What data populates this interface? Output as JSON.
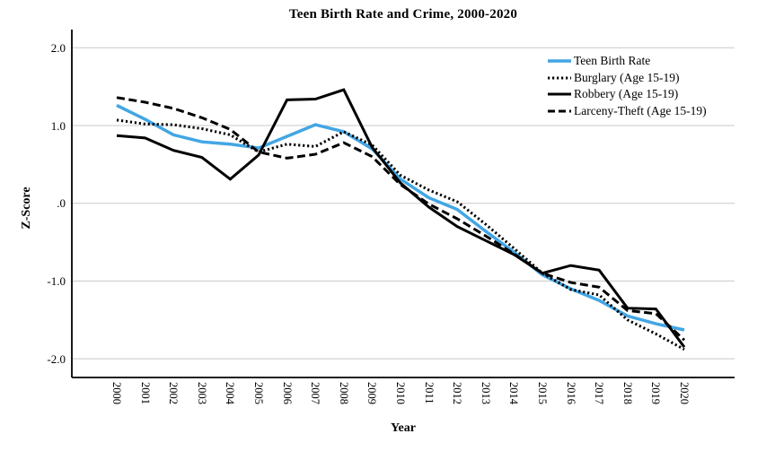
{
  "title": "Teen Birth Rate and Crime, 2000-2020",
  "y_axis": {
    "label": "Z-Score",
    "tick_labels": [
      "2.0",
      "1.0",
      ".0",
      "-1.0",
      "-2.0"
    ],
    "tick_values": [
      2.0,
      1.0,
      0.0,
      -1.0,
      -2.0
    ]
  },
  "x_axis": {
    "label": "Year",
    "tick_labels": [
      "2000",
      "2001",
      "2002",
      "2003",
      "2004",
      "2005",
      "2006",
      "2007",
      "2008",
      "2009",
      "2010",
      "2011",
      "2012",
      "2013",
      "2014",
      "2015",
      "2016",
      "2017",
      "2018",
      "2019",
      "2020"
    ]
  },
  "colors": {
    "teen_birth_rate_line": "#42A6E4",
    "crime_lines": "#000000",
    "gridline": "#c8c8c8",
    "axis": "#000000",
    "background": "#ffffff"
  },
  "legend": {
    "position": "top-right",
    "entries": [
      "Teen Birth Rate",
      "Burglary (Age 15-19)",
      "Robbery (Age 15-19)",
      "Larceny-Theft (Age 15-19)"
    ]
  },
  "chart_data": {
    "type": "line",
    "title": "Teen Birth Rate and Crime, 2000-2020",
    "xlabel": "Year",
    "ylabel": "Z-Score",
    "ylim": [
      -2.2,
      2.2
    ],
    "grid": "horizontal",
    "legend_position": "top-right",
    "x": [
      2000,
      2001,
      2002,
      2003,
      2004,
      2005,
      2006,
      2007,
      2008,
      2009,
      2010,
      2011,
      2012,
      2013,
      2014,
      2015,
      2016,
      2017,
      2018,
      2019,
      2020
    ],
    "series": [
      {
        "name": "Teen Birth Rate",
        "style": "solid",
        "color": "#42A6E4",
        "width": 3.5,
        "values": [
          1.26,
          1.08,
          0.88,
          0.79,
          0.76,
          0.71,
          0.86,
          1.01,
          0.92,
          0.7,
          0.31,
          0.07,
          -0.08,
          -0.36,
          -0.63,
          -0.92,
          -1.1,
          -1.25,
          -1.45,
          -1.55,
          -1.63
        ]
      },
      {
        "name": "Burglary (Age 15-19)",
        "style": "dotted",
        "color": "#000000",
        "width": 3,
        "values": [
          1.07,
          1.02,
          1.01,
          0.96,
          0.88,
          0.66,
          0.76,
          0.73,
          0.92,
          0.75,
          0.36,
          0.17,
          0.02,
          -0.27,
          -0.58,
          -0.9,
          -1.11,
          -1.18,
          -1.5,
          -1.68,
          -1.88
        ]
      },
      {
        "name": "Robbery (Age 15-19)",
        "style": "solid",
        "color": "#000000",
        "width": 3,
        "values": [
          0.87,
          0.84,
          0.68,
          0.59,
          0.31,
          0.62,
          1.33,
          1.34,
          1.46,
          0.72,
          0.26,
          -0.05,
          -0.3,
          -0.48,
          -0.66,
          -0.9,
          -0.8,
          -0.86,
          -1.35,
          -1.36,
          -1.85
        ]
      },
      {
        "name": "Larceny-Theft (Age 15-19)",
        "style": "dashed",
        "color": "#000000",
        "width": 3,
        "values": [
          1.36,
          1.3,
          1.22,
          1.1,
          0.95,
          0.66,
          0.58,
          0.63,
          0.78,
          0.6,
          0.24,
          -0.01,
          -0.2,
          -0.42,
          -0.65,
          -0.9,
          -1.02,
          -1.08,
          -1.38,
          -1.42,
          -1.76
        ]
      }
    ]
  }
}
